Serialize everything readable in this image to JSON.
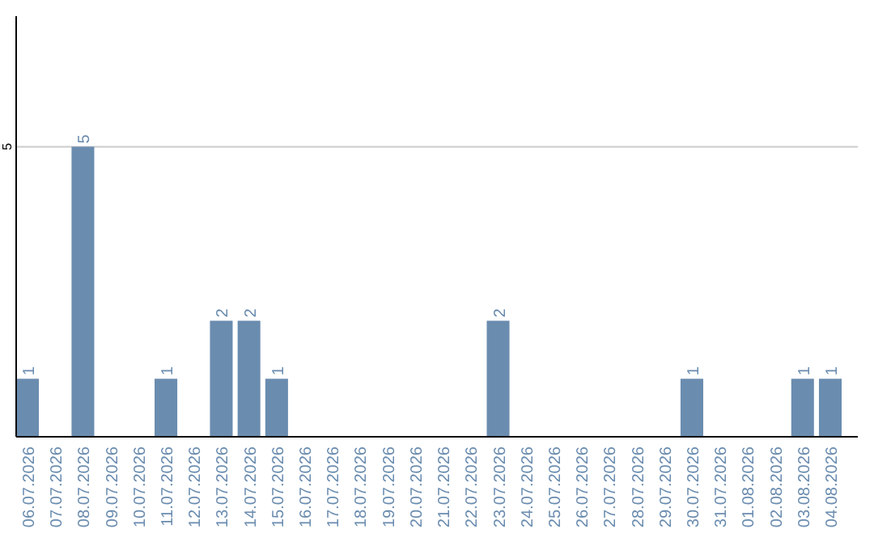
{
  "chart_data": {
    "type": "bar",
    "categories": [
      "06.07.2026",
      "07.07.2026",
      "08.07.2026",
      "09.07.2026",
      "10.07.2026",
      "11.07.2026",
      "12.07.2026",
      "13.07.2026",
      "14.07.2026",
      "15.07.2026",
      "16.07.2026",
      "17.07.2026",
      "18.07.2026",
      "19.07.2026",
      "20.07.2026",
      "21.07.2026",
      "22.07.2026",
      "23.07.2026",
      "24.07.2026",
      "25.07.2026",
      "26.07.2026",
      "27.07.2026",
      "28.07.2026",
      "29.07.2026",
      "30.07.2026",
      "31.07.2026",
      "01.08.2026",
      "02.08.2026",
      "03.08.2026",
      "04.08.2026"
    ],
    "values": [
      1,
      0,
      5,
      0,
      0,
      1,
      0,
      2,
      2,
      1,
      0,
      0,
      0,
      0,
      0,
      0,
      0,
      2,
      0,
      0,
      0,
      0,
      0,
      0,
      1,
      0,
      0,
      0,
      1,
      1
    ],
    "value_labels": [
      "1",
      null,
      "5",
      null,
      null,
      "1",
      null,
      "2",
      "2",
      "1",
      null,
      null,
      null,
      null,
      null,
      null,
      null,
      "2",
      null,
      null,
      null,
      null,
      null,
      null,
      "1",
      null,
      null,
      null,
      "1",
      "1"
    ],
    "color": "#6a8caf",
    "ylim": [
      0,
      7.25
    ],
    "yticks": [
      5
    ],
    "grid": "y"
  }
}
